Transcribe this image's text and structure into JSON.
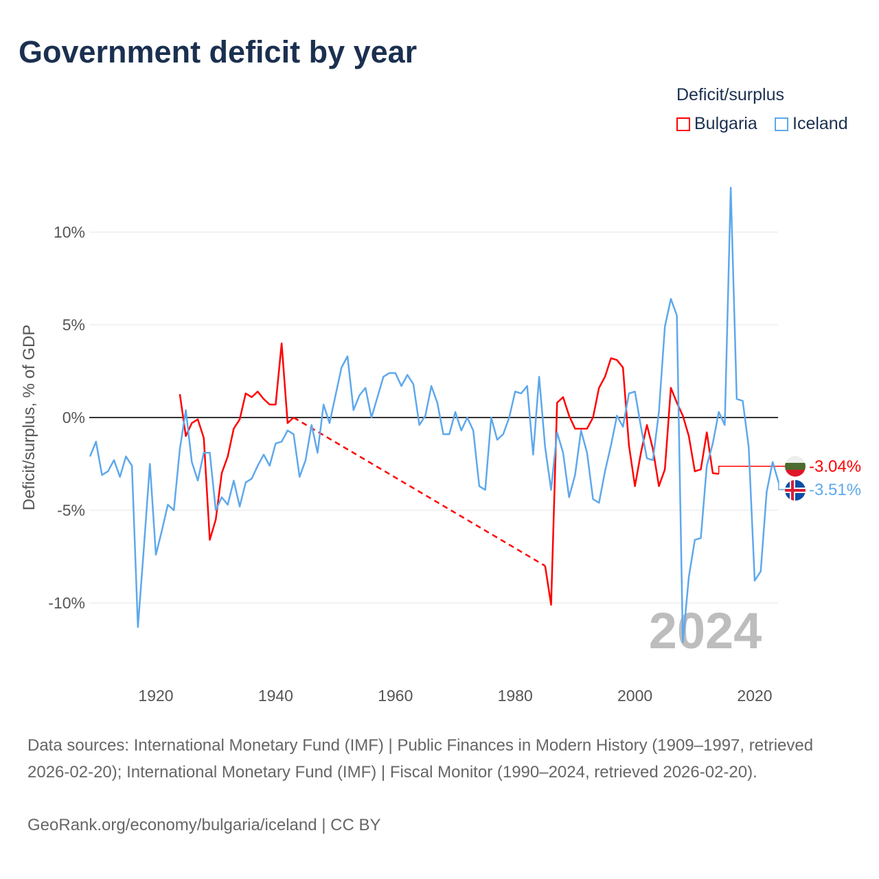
{
  "title": "Government deficit by year",
  "legend": {
    "title": "Deficit/surplus",
    "items": [
      {
        "name": "Bulgaria",
        "color": "#ff0000"
      },
      {
        "name": "Iceland",
        "color": "#5ea8ec"
      }
    ]
  },
  "current_year_label": "2024",
  "footer": {
    "sources": "Data sources: International Monetary Fund (IMF) | Public Finances in Modern History (1909–1997, retrieved 2026-02-20); International Monetary Fund (IMF) | Fiscal Monitor (1990–2024, retrieved 2026-02-20).",
    "credit": "GeoRank.org/economy/bulgaria/iceland | CC BY"
  },
  "chart_data": {
    "type": "line",
    "title": "Government deficit by year",
    "xlabel": "",
    "ylabel": "Deficit/surplus, % of GDP",
    "xlim": [
      1909,
      2024
    ],
    "ylim": [
      -13.5,
      12.5
    ],
    "x_ticks": [
      1920,
      1940,
      1960,
      1980,
      2000,
      2020
    ],
    "x_tick_labels": [
      "1920",
      "1940",
      "1960",
      "1980",
      "2000",
      "2020"
    ],
    "y_ticks": [
      10,
      5,
      0,
      -5,
      -10
    ],
    "y_tick_labels": [
      "10%",
      "5%",
      "0%",
      "-5%",
      "-10%"
    ],
    "grid": true,
    "legend_position": "top-right",
    "end_labels": [
      "-3.04%",
      "-3.51%"
    ],
    "series": [
      {
        "name": "Bulgaria",
        "color": "#ff0000",
        "start_year": 1924,
        "values": [
          1.26,
          -1.0,
          -0.3,
          -0.1,
          -1.1,
          -6.6,
          -5.5,
          -3.0,
          -2.1,
          -0.6,
          -0.1,
          1.3,
          1.1,
          1.4,
          1.0,
          0.7,
          0.7,
          4.0,
          -0.3,
          0.0,
          null,
          null,
          null,
          null,
          null,
          null,
          null,
          null,
          null,
          null,
          null,
          null,
          null,
          null,
          null,
          null,
          null,
          null,
          null,
          null,
          null,
          null,
          null,
          null,
          null,
          null,
          null,
          null,
          null,
          null,
          null,
          null,
          null,
          null,
          null,
          null,
          null,
          null,
          null,
          null,
          null,
          -8.0,
          -10.1,
          0.8,
          1.1,
          0.1,
          -0.6,
          -0.6,
          -0.6,
          0.0,
          1.6,
          2.2,
          3.2,
          3.1,
          2.7,
          -1.5,
          -3.7,
          -1.9,
          -0.4,
          -1.7,
          -3.7,
          -2.8,
          1.6,
          0.8,
          0.1,
          -1.0,
          -2.9,
          -2.8,
          -0.8,
          -3.0,
          -3.04
        ]
      },
      {
        "name": "Iceland",
        "color": "#5ea8ec",
        "start_year": 1909,
        "values": [
          -2.1,
          -1.3,
          -3.1,
          -2.9,
          -2.3,
          -3.2,
          -2.1,
          -2.6,
          -11.3,
          -7.0,
          -2.5,
          -7.4,
          -6.1,
          -4.7,
          -5.0,
          -1.7,
          0.4,
          -2.4,
          -3.4,
          -1.9,
          -1.9,
          -5.0,
          -4.3,
          -4.7,
          -3.4,
          -4.8,
          -3.5,
          -3.3,
          -2.6,
          -2.0,
          -2.6,
          -1.4,
          -1.3,
          -0.7,
          -0.9,
          -3.2,
          -2.3,
          -0.4,
          -1.9,
          0.7,
          -0.3,
          1.2,
          2.7,
          3.3,
          0.4,
          1.2,
          1.6,
          0.0,
          1.1,
          2.2,
          2.4,
          2.4,
          1.7,
          2.3,
          1.8,
          -0.4,
          0.1,
          1.7,
          0.8,
          -0.9,
          -0.9,
          0.3,
          -0.7,
          0.0,
          -0.7,
          -3.7,
          -3.9,
          0.0,
          -1.2,
          -0.9,
          0.0,
          1.4,
          1.3,
          1.7,
          -2.0,
          2.2,
          -1.6,
          -3.9,
          -0.8,
          -1.9,
          -4.3,
          -3.1,
          -0.7,
          -1.9,
          -4.4,
          -4.6,
          -2.9,
          -1.5,
          0.1,
          -0.5,
          1.3,
          1.4,
          -0.5,
          -2.2,
          -2.3,
          0.3,
          4.9,
          6.4,
          5.5,
          -12.1,
          -8.6,
          -6.6,
          -6.5,
          -2.6,
          -1.4,
          0.3,
          -0.4,
          12.4,
          1.0,
          0.9,
          -1.6,
          -8.8,
          -8.3,
          -4.0,
          -2.4,
          -3.51
        ]
      }
    ]
  }
}
